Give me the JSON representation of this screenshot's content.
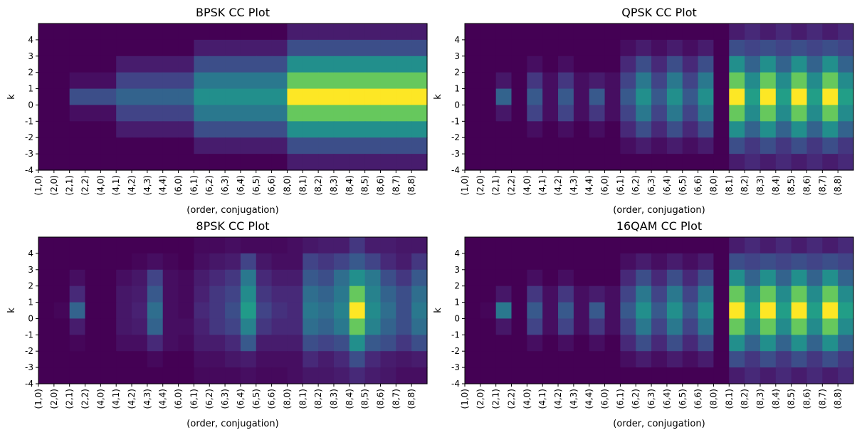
{
  "figure": {
    "background": "#ffffff",
    "colormap": "viridis"
  },
  "chart_data": [
    {
      "type": "heatmap",
      "title": "BPSK CC Plot",
      "xlabel": "(order, conjugation)",
      "ylabel": "k",
      "x_ticks": [
        "(1,0)",
        "(2,0)",
        "(2,1)",
        "(2,2)",
        "(4,0)",
        "(4,1)",
        "(4,2)",
        "(4,3)",
        "(4,4)",
        "(6,0)",
        "(6,1)",
        "(6,2)",
        "(6,3)",
        "(6,4)",
        "(6,5)",
        "(6,6)",
        "(8,0)",
        "(8,1)",
        "(8,2)",
        "(8,3)",
        "(8,4)",
        "(8,5)",
        "(8,6)",
        "(8,7)",
        "(8,8)"
      ],
      "y_ticks": [
        "4",
        "3",
        "2",
        "1",
        "0",
        "-1",
        "-2",
        "-3",
        "-4"
      ],
      "k_range": [
        -4,
        4
      ],
      "color_range": [
        0,
        1
      ],
      "values": [
        [
          0,
          0,
          0,
          0,
          0,
          0,
          0,
          0,
          0,
          0,
          0,
          0,
          0,
          0,
          0,
          0,
          0.1,
          0.1,
          0.1,
          0.1,
          0.1,
          0.1,
          0.1,
          0.1,
          0.1
        ],
        [
          0,
          0,
          0,
          0,
          0,
          0,
          0,
          0,
          0,
          0,
          0.1,
          0.1,
          0.1,
          0.1,
          0.1,
          0.1,
          0.3,
          0.3,
          0.3,
          0.3,
          0.3,
          0.3,
          0.3,
          0.3,
          0.3
        ],
        [
          0,
          0,
          0,
          0,
          0,
          0.1,
          0.1,
          0.1,
          0.1,
          0.1,
          0.3,
          0.3,
          0.3,
          0.3,
          0.3,
          0.3,
          0.62,
          0.62,
          0.62,
          0.62,
          0.62,
          0.62,
          0.62,
          0.62,
          0.62
        ],
        [
          0,
          0,
          0.05,
          0.05,
          0.05,
          0.25,
          0.25,
          0.25,
          0.25,
          0.25,
          0.5,
          0.5,
          0.5,
          0.5,
          0.5,
          0.5,
          0.85,
          0.85,
          0.85,
          0.85,
          0.85,
          0.85,
          0.85,
          0.85,
          0.85
        ],
        [
          0,
          0,
          0.3,
          0.3,
          0.3,
          0.4,
          0.4,
          0.4,
          0.4,
          0.4,
          0.62,
          0.62,
          0.62,
          0.62,
          0.62,
          0.62,
          1.0,
          1.0,
          1.0,
          1.0,
          1.0,
          1.0,
          1.0,
          1.0,
          1.0
        ],
        [
          0,
          0,
          0.05,
          0.05,
          0.05,
          0.25,
          0.25,
          0.25,
          0.25,
          0.25,
          0.5,
          0.5,
          0.5,
          0.5,
          0.5,
          0.5,
          0.85,
          0.85,
          0.85,
          0.85,
          0.85,
          0.85,
          0.85,
          0.85,
          0.85
        ],
        [
          0,
          0,
          0,
          0,
          0,
          0.1,
          0.1,
          0.1,
          0.1,
          0.1,
          0.3,
          0.3,
          0.3,
          0.3,
          0.3,
          0.3,
          0.62,
          0.62,
          0.62,
          0.62,
          0.62,
          0.62,
          0.62,
          0.62,
          0.62
        ],
        [
          0,
          0,
          0,
          0,
          0,
          0,
          0,
          0,
          0,
          0,
          0.1,
          0.1,
          0.1,
          0.1,
          0.1,
          0.1,
          0.3,
          0.3,
          0.3,
          0.3,
          0.3,
          0.3,
          0.3,
          0.3,
          0.3
        ],
        [
          0,
          0,
          0,
          0,
          0,
          0,
          0,
          0,
          0,
          0,
          0,
          0,
          0,
          0,
          0,
          0,
          0.1,
          0.1,
          0.1,
          0.1,
          0.1,
          0.1,
          0.1,
          0.1,
          0.1
        ]
      ]
    },
    {
      "type": "heatmap",
      "title": "QPSK CC Plot",
      "xlabel": "(order, conjugation)",
      "ylabel": "k",
      "x_ticks": [
        "(1,0)",
        "(2,0)",
        "(2,1)",
        "(2,2)",
        "(4,0)",
        "(4,1)",
        "(4,2)",
        "(4,3)",
        "(4,4)",
        "(6,0)",
        "(6,1)",
        "(6,2)",
        "(6,3)",
        "(6,4)",
        "(6,5)",
        "(6,6)",
        "(8,0)",
        "(8,1)",
        "(8,2)",
        "(8,3)",
        "(8,4)",
        "(8,5)",
        "(8,6)",
        "(8,7)",
        "(8,8)"
      ],
      "y_ticks": [
        "4",
        "3",
        "2",
        "1",
        "0",
        "-1",
        "-2",
        "-3",
        "-4"
      ],
      "k_range": [
        -4,
        4
      ],
      "color_range": [
        0,
        1
      ],
      "values": [
        [
          0,
          0,
          0,
          0,
          0,
          0,
          0,
          0,
          0,
          0,
          0,
          0,
          0,
          0,
          0,
          0,
          0,
          0.1,
          0.15,
          0.1,
          0.15,
          0.1,
          0.15,
          0.1,
          0.15
        ],
        [
          0,
          0,
          0,
          0,
          0,
          0,
          0,
          0,
          0,
          0,
          0.05,
          0.1,
          0.05,
          0.1,
          0.05,
          0.1,
          0,
          0.3,
          0.25,
          0.3,
          0.25,
          0.3,
          0.25,
          0.3,
          0.25
        ],
        [
          0,
          0,
          0,
          0,
          0.05,
          0,
          0.05,
          0,
          0,
          0,
          0.15,
          0.3,
          0.15,
          0.3,
          0.15,
          0.3,
          0,
          0.62,
          0.4,
          0.62,
          0.4,
          0.62,
          0.4,
          0.62,
          0.4
        ],
        [
          0,
          0,
          0.08,
          0,
          0.2,
          0.05,
          0.2,
          0.05,
          0.1,
          0.05,
          0.25,
          0.5,
          0.25,
          0.5,
          0.25,
          0.5,
          0,
          0.85,
          0.6,
          0.85,
          0.6,
          0.85,
          0.6,
          0.85,
          0.6
        ],
        [
          0,
          0,
          0.4,
          0,
          0.35,
          0.05,
          0.35,
          0.05,
          0.35,
          0.05,
          0.35,
          0.62,
          0.35,
          0.62,
          0.35,
          0.62,
          0,
          1.0,
          0.7,
          1.0,
          0.7,
          1.0,
          0.7,
          1.0,
          0.7
        ],
        [
          0,
          0,
          0.08,
          0,
          0.25,
          0.05,
          0.25,
          0.05,
          0.2,
          0.05,
          0.25,
          0.5,
          0.25,
          0.5,
          0.25,
          0.5,
          0,
          0.85,
          0.6,
          0.85,
          0.6,
          0.85,
          0.6,
          0.85,
          0.6
        ],
        [
          0,
          0,
          0,
          0,
          0.05,
          0,
          0.05,
          0,
          0.05,
          0,
          0.15,
          0.3,
          0.15,
          0.3,
          0.15,
          0.3,
          0,
          0.62,
          0.4,
          0.62,
          0.4,
          0.62,
          0.4,
          0.62,
          0.4
        ],
        [
          0,
          0,
          0,
          0,
          0,
          0,
          0,
          0,
          0,
          0,
          0.05,
          0.1,
          0.05,
          0.1,
          0.05,
          0.1,
          0,
          0.3,
          0.2,
          0.3,
          0.2,
          0.3,
          0.2,
          0.3,
          0.2
        ],
        [
          0,
          0,
          0,
          0,
          0,
          0,
          0,
          0,
          0,
          0,
          0,
          0,
          0,
          0,
          0,
          0,
          0,
          0.1,
          0.15,
          0.1,
          0.15,
          0.1,
          0.15,
          0.1,
          0.15
        ]
      ]
    },
    {
      "type": "heatmap",
      "title": "8PSK CC Plot",
      "xlabel": "(order, conjugation)",
      "ylabel": "k",
      "x_ticks": [
        "(1,0)",
        "(2,0)",
        "(2,1)",
        "(2,2)",
        "(4,0)",
        "(4,1)",
        "(4,2)",
        "(4,3)",
        "(4,4)",
        "(6,0)",
        "(6,1)",
        "(6,2)",
        "(6,3)",
        "(6,4)",
        "(6,5)",
        "(6,6)",
        "(8,0)",
        "(8,1)",
        "(8,2)",
        "(8,3)",
        "(8,4)",
        "(8,5)",
        "(8,6)",
        "(8,7)",
        "(8,8)"
      ],
      "y_ticks": [
        "4",
        "3",
        "2",
        "1",
        "0",
        "-1",
        "-2",
        "-3",
        "-4"
      ],
      "k_range": [
        -4,
        4
      ],
      "color_range": [
        0,
        1
      ],
      "values": [
        [
          0,
          0,
          0,
          0,
          0,
          0,
          0,
          0,
          0,
          0,
          0.03,
          0.03,
          0.05,
          0.03,
          0.03,
          0.03,
          0.05,
          0.08,
          0.1,
          0.1,
          0.2,
          0.1,
          0.1,
          0.08,
          0.08
        ],
        [
          0,
          0,
          0,
          0,
          0,
          0,
          0.02,
          0.05,
          0.02,
          0,
          0.05,
          0.08,
          0.1,
          0.25,
          0.08,
          0.05,
          0.05,
          0.25,
          0.2,
          0.25,
          0.35,
          0.25,
          0.15,
          0.1,
          0.2
        ],
        [
          0,
          0,
          0.05,
          0,
          0,
          0.05,
          0.08,
          0.25,
          0.05,
          0.03,
          0.1,
          0.15,
          0.2,
          0.5,
          0.15,
          0.1,
          0.1,
          0.35,
          0.3,
          0.45,
          0.62,
          0.5,
          0.3,
          0.2,
          0.35
        ],
        [
          0,
          0,
          0.15,
          0,
          0,
          0.08,
          0.1,
          0.35,
          0.05,
          0.03,
          0.12,
          0.2,
          0.25,
          0.6,
          0.2,
          0.15,
          0.15,
          0.45,
          0.4,
          0.5,
          0.85,
          0.55,
          0.4,
          0.3,
          0.45
        ],
        [
          0,
          0.02,
          0.4,
          0,
          0,
          0.08,
          0.12,
          0.45,
          0.05,
          0.03,
          0.15,
          0.2,
          0.3,
          0.68,
          0.25,
          0.18,
          0.15,
          0.5,
          0.45,
          0.55,
          1.0,
          0.6,
          0.45,
          0.3,
          0.5
        ],
        [
          0,
          0,
          0.1,
          0,
          0,
          0.08,
          0.1,
          0.4,
          0.05,
          0.05,
          0.12,
          0.2,
          0.25,
          0.55,
          0.2,
          0.15,
          0.15,
          0.45,
          0.4,
          0.5,
          0.85,
          0.55,
          0.4,
          0.3,
          0.45
        ],
        [
          0,
          0,
          0.02,
          0,
          0,
          0.05,
          0.05,
          0.15,
          0.05,
          0.03,
          0.1,
          0.1,
          0.15,
          0.35,
          0.1,
          0.1,
          0.1,
          0.3,
          0.25,
          0.3,
          0.62,
          0.35,
          0.3,
          0.2,
          0.3
        ],
        [
          0,
          0,
          0,
          0,
          0,
          0,
          0,
          0.03,
          0,
          0,
          0.05,
          0.05,
          0.08,
          0.1,
          0.05,
          0.05,
          0.05,
          0.15,
          0.1,
          0.15,
          0.3,
          0.15,
          0.1,
          0.08,
          0.1
        ],
        [
          0,
          0,
          0,
          0,
          0,
          0,
          0,
          0,
          0,
          0,
          0.03,
          0.03,
          0.03,
          0.05,
          0.03,
          0.03,
          0.05,
          0.08,
          0.08,
          0.1,
          0.15,
          0.1,
          0.08,
          0.05,
          0.05
        ]
      ]
    },
    {
      "type": "heatmap",
      "title": "16QAM CC Plot",
      "xlabel": "(order, conjugation)",
      "ylabel": "k",
      "x_ticks": [
        "(1,0)",
        "(2,0)",
        "(2,1)",
        "(2,2)",
        "(4,0)",
        "(4,1)",
        "(4,2)",
        "(4,3)",
        "(4,4)",
        "(6,0)",
        "(6,1)",
        "(6,2)",
        "(6,3)",
        "(6,4)",
        "(6,5)",
        "(6,6)",
        "(8,0)",
        "(8,1)",
        "(8,2)",
        "(8,3)",
        "(8,4)",
        "(8,5)",
        "(8,6)",
        "(8,7)",
        "(8,8)"
      ],
      "y_ticks": [
        "4",
        "3",
        "2",
        "1",
        "0",
        "-1",
        "-2",
        "-3",
        "-4"
      ],
      "k_range": [
        -4,
        4
      ],
      "color_range": [
        0,
        1
      ],
      "values": [
        [
          0,
          0,
          0,
          0,
          0,
          0,
          0,
          0,
          0,
          0,
          0,
          0,
          0,
          0,
          0,
          0,
          0,
          0.1,
          0.15,
          0.1,
          0.15,
          0.1,
          0.15,
          0.1,
          0.15
        ],
        [
          0,
          0,
          0,
          0,
          0,
          0,
          0,
          0,
          0,
          0,
          0.05,
          0.1,
          0.05,
          0.1,
          0.05,
          0.1,
          0,
          0.3,
          0.25,
          0.3,
          0.25,
          0.3,
          0.25,
          0.3,
          0.25
        ],
        [
          0,
          0,
          0,
          0,
          0.05,
          0,
          0.05,
          0,
          0,
          0,
          0.15,
          0.3,
          0.15,
          0.3,
          0.15,
          0.3,
          0,
          0.62,
          0.4,
          0.62,
          0.4,
          0.62,
          0.4,
          0.62,
          0.4
        ],
        [
          0,
          0,
          0.08,
          0,
          0.2,
          0.05,
          0.2,
          0.05,
          0.1,
          0.05,
          0.25,
          0.5,
          0.25,
          0.5,
          0.25,
          0.5,
          0,
          0.85,
          0.6,
          0.85,
          0.6,
          0.85,
          0.6,
          0.85,
          0.6
        ],
        [
          0,
          0.02,
          0.5,
          0,
          0.35,
          0.05,
          0.35,
          0.05,
          0.35,
          0.05,
          0.35,
          0.62,
          0.35,
          0.62,
          0.35,
          0.62,
          0,
          1.0,
          0.7,
          1.0,
          0.7,
          1.0,
          0.7,
          1.0,
          0.7
        ],
        [
          0,
          0,
          0.08,
          0,
          0.25,
          0.05,
          0.25,
          0.05,
          0.2,
          0.05,
          0.25,
          0.5,
          0.25,
          0.5,
          0.25,
          0.5,
          0,
          0.85,
          0.6,
          0.85,
          0.6,
          0.85,
          0.6,
          0.85,
          0.6
        ],
        [
          0,
          0,
          0,
          0,
          0.05,
          0,
          0.05,
          0,
          0.05,
          0,
          0.15,
          0.3,
          0.15,
          0.3,
          0.15,
          0.3,
          0,
          0.62,
          0.4,
          0.62,
          0.4,
          0.62,
          0.4,
          0.62,
          0.4
        ],
        [
          0,
          0,
          0,
          0,
          0,
          0,
          0,
          0,
          0,
          0,
          0.05,
          0.1,
          0.05,
          0.1,
          0.05,
          0.1,
          0,
          0.3,
          0.2,
          0.3,
          0.2,
          0.3,
          0.2,
          0.3,
          0.2
        ],
        [
          0,
          0,
          0,
          0,
          0,
          0,
          0,
          0,
          0,
          0,
          0,
          0,
          0,
          0,
          0,
          0,
          0,
          0.1,
          0.15,
          0.1,
          0.15,
          0.1,
          0.15,
          0.1,
          0.15
        ]
      ]
    }
  ]
}
